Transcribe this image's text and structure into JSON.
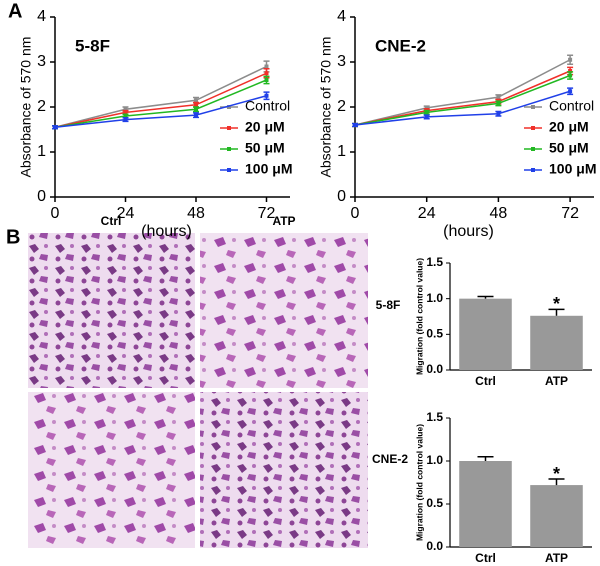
{
  "figure": {
    "panel_labels": [
      "A",
      "B"
    ],
    "image_columns": [
      "Ctrl",
      "ATP"
    ],
    "image_rows": [
      "5-8F",
      "CNE-2"
    ]
  },
  "chart_data": [
    {
      "type": "line",
      "title": "5-8F",
      "x_label": "(hours)",
      "y_label": "Absorbance of 570 nm",
      "x": [
        0,
        24,
        48,
        72
      ],
      "xlim": [
        0,
        80
      ],
      "xticks": [
        0,
        24,
        48,
        72
      ],
      "ylim": [
        0,
        4
      ],
      "yticks": [
        0,
        1,
        2,
        3,
        4
      ],
      "legend": "right",
      "series": [
        {
          "name": "Control",
          "color": "#8c8c8c",
          "values": [
            1.55,
            1.95,
            2.15,
            2.9
          ],
          "errors": [
            0.03,
            0.05,
            0.06,
            0.12
          ]
        },
        {
          "name": "20 μM",
          "color": "#f0302a",
          "values": [
            1.55,
            1.88,
            2.05,
            2.75
          ],
          "errors": [
            0.03,
            0.04,
            0.05,
            0.1
          ]
        },
        {
          "name": "50 μM",
          "color": "#22b822",
          "values": [
            1.55,
            1.8,
            1.95,
            2.6
          ],
          "errors": [
            0.03,
            0.04,
            0.05,
            0.08
          ]
        },
        {
          "name": "100 μM",
          "color": "#2040e8",
          "values": [
            1.55,
            1.72,
            1.82,
            2.25
          ],
          "errors": [
            0.03,
            0.04,
            0.05,
            0.08
          ]
        }
      ]
    },
    {
      "type": "line",
      "title": "CNE-2",
      "x_label": "(hours)",
      "y_label": "Absorbance of 570 nm",
      "x": [
        0,
        24,
        48,
        72
      ],
      "xlim": [
        0,
        80
      ],
      "xticks": [
        0,
        24,
        48,
        72
      ],
      "ylim": [
        0,
        4
      ],
      "yticks": [
        0,
        1,
        2,
        3,
        4
      ],
      "legend": "right",
      "series": [
        {
          "name": "Control",
          "color": "#8c8c8c",
          "values": [
            1.6,
            1.98,
            2.22,
            3.05
          ],
          "errors": [
            0.03,
            0.04,
            0.05,
            0.1
          ]
        },
        {
          "name": "20 μM",
          "color": "#f0302a",
          "values": [
            1.6,
            1.92,
            2.12,
            2.8
          ],
          "errors": [
            0.03,
            0.04,
            0.05,
            0.08
          ]
        },
        {
          "name": "50 μM",
          "color": "#22b822",
          "values": [
            1.6,
            1.88,
            2.08,
            2.7
          ],
          "errors": [
            0.03,
            0.04,
            0.05,
            0.08
          ]
        },
        {
          "name": "100 μM",
          "color": "#2040e8",
          "values": [
            1.6,
            1.78,
            1.85,
            2.35
          ],
          "errors": [
            0.03,
            0.04,
            0.05,
            0.07
          ]
        }
      ]
    },
    {
      "type": "bar",
      "y_label": "Migration (fold control value)",
      "categories": [
        "Ctrl",
        "ATP"
      ],
      "values": [
        1.0,
        0.76
      ],
      "errors": [
        0.03,
        0.09
      ],
      "color": "#999999",
      "annotation": "*",
      "ylim": [
        0,
        1.5
      ],
      "yticks": [
        {
          "value": 0,
          "label": "0.0"
        },
        {
          "value": 0.5,
          "label": "0.5"
        },
        {
          "value": 1,
          "label": "1.0"
        },
        {
          "value": 1.5,
          "label": "1.5"
        }
      ]
    },
    {
      "type": "bar",
      "y_label": "Migration (fold control value)",
      "categories": [
        "Ctrl",
        "ATP"
      ],
      "values": [
        1.0,
        0.72
      ],
      "errors": [
        0.05,
        0.07
      ],
      "color": "#999999",
      "annotation": "*",
      "ylim": [
        0,
        1.5
      ],
      "yticks": [
        {
          "value": 0,
          "label": "0.0"
        },
        {
          "value": 0.5,
          "label": "0.5"
        },
        {
          "value": 1,
          "label": "1.0"
        },
        {
          "value": 1.5,
          "label": "1.5"
        }
      ]
    }
  ]
}
